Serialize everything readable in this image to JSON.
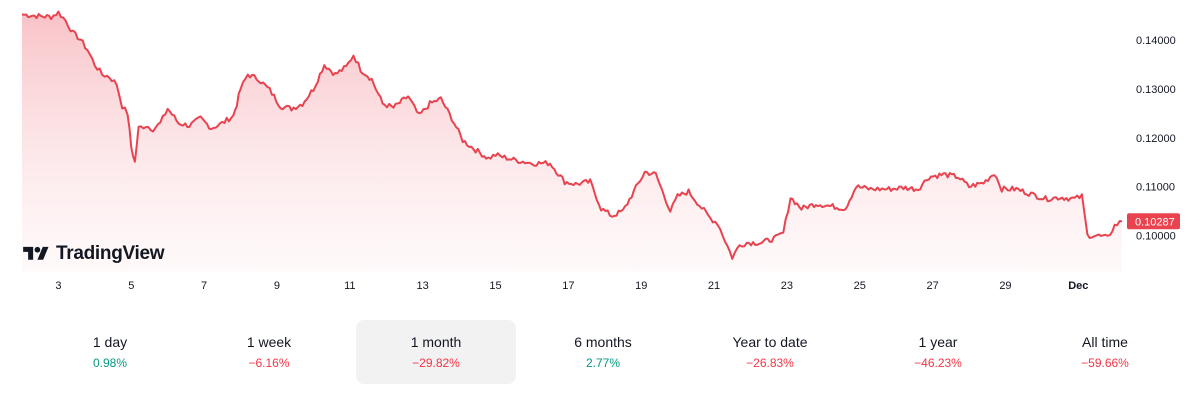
{
  "chart_data": {
    "type": "area",
    "title": "",
    "xlabel": "",
    "ylabel": "",
    "x_tick_labels": [
      "3",
      "5",
      "7",
      "9",
      "11",
      "13",
      "15",
      "17",
      "19",
      "21",
      "23",
      "25",
      "27",
      "29",
      "Dec"
    ],
    "y_ticks": [
      "0.10000",
      "0.11000",
      "0.12000",
      "0.13000",
      "0.14000"
    ],
    "ylim": [
      0.0925,
      0.1462
    ],
    "x_range_days": [
      2.0,
      32.2
    ],
    "series": [
      {
        "name": "Price",
        "points": [
          [
            2.0,
            0.1453
          ],
          [
            2.4,
            0.145
          ],
          [
            2.8,
            0.1448
          ],
          [
            3.0,
            0.1457
          ],
          [
            3.2,
            0.144
          ],
          [
            3.4,
            0.1415
          ],
          [
            3.6,
            0.1402
          ],
          [
            3.8,
            0.138
          ],
          [
            4.0,
            0.135
          ],
          [
            4.2,
            0.133
          ],
          [
            4.4,
            0.1325
          ],
          [
            4.6,
            0.131
          ],
          [
            4.75,
            0.1265
          ],
          [
            4.9,
            0.125
          ],
          [
            5.0,
            0.118
          ],
          [
            5.1,
            0.115
          ],
          [
            5.2,
            0.122
          ],
          [
            5.4,
            0.1225
          ],
          [
            5.6,
            0.1218
          ],
          [
            5.8,
            0.123
          ],
          [
            6.0,
            0.126
          ],
          [
            6.3,
            0.123
          ],
          [
            6.6,
            0.1225
          ],
          [
            6.9,
            0.124
          ],
          [
            7.2,
            0.122
          ],
          [
            7.5,
            0.123
          ],
          [
            7.8,
            0.1245
          ],
          [
            7.9,
            0.127
          ],
          [
            8.0,
            0.13
          ],
          [
            8.2,
            0.133
          ],
          [
            8.5,
            0.132
          ],
          [
            8.8,
            0.1298
          ],
          [
            9.1,
            0.1265
          ],
          [
            9.4,
            0.126
          ],
          [
            9.7,
            0.127
          ],
          [
            10.0,
            0.13
          ],
          [
            10.3,
            0.135
          ],
          [
            10.6,
            0.133
          ],
          [
            10.9,
            0.1345
          ],
          [
            11.1,
            0.137
          ],
          [
            11.3,
            0.134
          ],
          [
            11.6,
            0.132
          ],
          [
            11.9,
            0.127
          ],
          [
            12.2,
            0.1262
          ],
          [
            12.6,
            0.1285
          ],
          [
            12.9,
            0.1245
          ],
          [
            13.2,
            0.127
          ],
          [
            13.5,
            0.128
          ],
          [
            13.8,
            0.124
          ],
          [
            14.1,
            0.1195
          ],
          [
            14.4,
            0.1178
          ],
          [
            14.8,
            0.1158
          ],
          [
            15.0,
            0.1165
          ],
          [
            15.5,
            0.1155
          ],
          [
            16.0,
            0.1148
          ],
          [
            16.5,
            0.1148
          ],
          [
            16.9,
            0.111
          ],
          [
            17.2,
            0.1105
          ],
          [
            17.6,
            0.111
          ],
          [
            17.9,
            0.1055
          ],
          [
            18.2,
            0.104
          ],
          [
            18.5,
            0.105
          ],
          [
            18.8,
            0.109
          ],
          [
            19.1,
            0.113
          ],
          [
            19.4,
            0.1125
          ],
          [
            19.8,
            0.105
          ],
          [
            20.0,
            0.108
          ],
          [
            20.3,
            0.109
          ],
          [
            20.6,
            0.1062
          ],
          [
            20.9,
            0.1035
          ],
          [
            21.1,
            0.1025
          ],
          [
            21.3,
            0.099
          ],
          [
            21.5,
            0.0955
          ],
          [
            21.7,
            0.098
          ],
          [
            21.9,
            0.0985
          ],
          [
            22.3,
            0.0985
          ],
          [
            22.7,
            0.0995
          ],
          [
            22.9,
            0.1005
          ],
          [
            23.1,
            0.1078
          ],
          [
            23.4,
            0.1055
          ],
          [
            23.8,
            0.1065
          ],
          [
            24.2,
            0.106
          ],
          [
            24.6,
            0.1055
          ],
          [
            24.9,
            0.11
          ],
          [
            25.3,
            0.1095
          ],
          [
            25.8,
            0.1095
          ],
          [
            26.2,
            0.1098
          ],
          [
            26.6,
            0.1095
          ],
          [
            26.9,
            0.112
          ],
          [
            27.3,
            0.1125
          ],
          [
            27.7,
            0.112
          ],
          [
            28.0,
            0.11
          ],
          [
            28.4,
            0.1108
          ],
          [
            28.7,
            0.1128
          ],
          [
            28.9,
            0.1095
          ],
          [
            29.3,
            0.1095
          ],
          [
            29.7,
            0.1085
          ],
          [
            30.1,
            0.1075
          ],
          [
            30.5,
            0.1078
          ],
          [
            30.9,
            0.1075
          ],
          [
            31.1,
            0.108
          ],
          [
            31.25,
            0.1
          ],
          [
            31.5,
            0.1
          ],
          [
            31.8,
            0.0995
          ],
          [
            32.0,
            0.102
          ],
          [
            32.2,
            0.1029
          ]
        ]
      }
    ],
    "last_value_label": "0.10287",
    "line_color": "#e8434f",
    "fill_color": "#f8c4c8"
  },
  "branding": {
    "logo_text": "TradingView"
  },
  "tabs": [
    {
      "label": "1 day",
      "change": "0.98%",
      "direction": "up",
      "active": false
    },
    {
      "label": "1 week",
      "change": "−6.16%",
      "direction": "down",
      "active": false
    },
    {
      "label": "1 month",
      "change": "−29.82%",
      "direction": "down",
      "active": true
    },
    {
      "label": "6 months",
      "change": "2.77%",
      "direction": "up",
      "active": false
    },
    {
      "label": "Year to date",
      "change": "−26.83%",
      "direction": "down",
      "active": false
    },
    {
      "label": "1 year",
      "change": "−46.23%",
      "direction": "down",
      "active": false
    },
    {
      "label": "All time",
      "change": "−59.66%",
      "direction": "down",
      "active": false
    }
  ],
  "colors": {
    "up": "#089981",
    "down": "#f23645",
    "text": "#131722",
    "active_bg": "#f2f2f2"
  }
}
